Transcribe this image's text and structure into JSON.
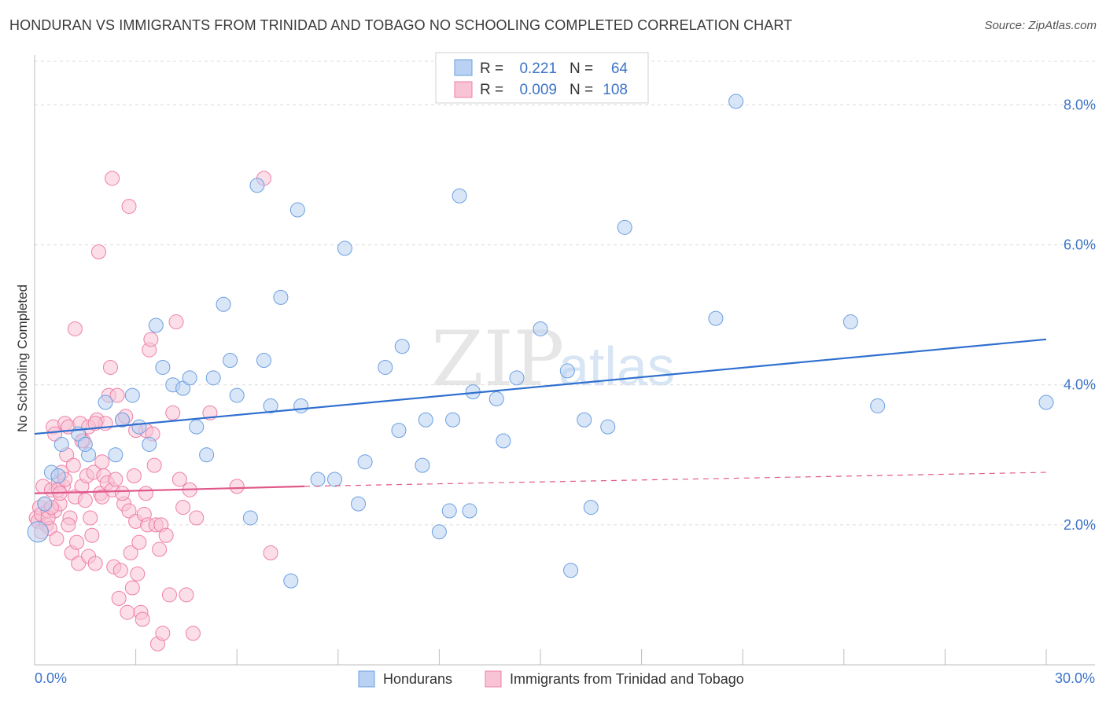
{
  "title": "HONDURAN VS IMMIGRANTS FROM TRINIDAD AND TOBAGO NO SCHOOLING COMPLETED CORRELATION CHART",
  "source": "Source: ZipAtlas.com",
  "watermark": {
    "zip": "ZIP",
    "atlas": "atlas"
  },
  "colors": {
    "blue": "#6b9fe0",
    "blue_fill": "#b9d1f2",
    "blue_line": "#2f6fcf",
    "pink": "#ef7fa6",
    "pink_fill": "#f7c3d5",
    "pink_line": "#e0588a",
    "axis_text": "#3d74c8",
    "grid": "#dcdcdc"
  },
  "legend": {
    "r_label": "R =",
    "n_label": "N =",
    "rows": [
      {
        "r": "0.221",
        "n": "64"
      },
      {
        "r": "0.009",
        "n": "108"
      }
    ]
  },
  "bottom_legend": {
    "series1": "Hondurans",
    "series2": "Immigrants from Trinidad and Tobago"
  },
  "chart_data": {
    "type": "scatter",
    "title": "HONDURAN VS IMMIGRANTS FROM TRINIDAD AND TOBAGO NO SCHOOLING COMPLETED CORRELATION CHART",
    "xlabel": "",
    "ylabel": "No Schooling Completed",
    "xlim": [
      0,
      30
    ],
    "ylim": [
      0,
      8.6
    ],
    "x_tick_labels": [
      "0.0%",
      "30.0%"
    ],
    "y_ticks": [
      2,
      4,
      6,
      8
    ],
    "y_tick_labels": [
      "2.0%",
      "4.0%",
      "6.0%",
      "8.0%"
    ],
    "series": [
      {
        "name": "Hondurans",
        "trend": {
          "x": [
            0,
            30
          ],
          "y": [
            3.3,
            4.65
          ],
          "style": "solid"
        },
        "points": [
          [
            0.1,
            1.9
          ],
          [
            0.3,
            2.3
          ],
          [
            0.5,
            2.75
          ],
          [
            0.7,
            2.7
          ],
          [
            0.8,
            3.15
          ],
          [
            1.3,
            3.3
          ],
          [
            1.6,
            3.0
          ],
          [
            1.5,
            3.15
          ],
          [
            2.1,
            3.75
          ],
          [
            2.4,
            3.0
          ],
          [
            2.6,
            3.5
          ],
          [
            2.9,
            3.85
          ],
          [
            3.1,
            3.4
          ],
          [
            3.4,
            3.15
          ],
          [
            3.6,
            4.85
          ],
          [
            3.8,
            4.25
          ],
          [
            4.1,
            4.0
          ],
          [
            4.4,
            3.95
          ],
          [
            4.6,
            4.1
          ],
          [
            4.8,
            3.4
          ],
          [
            5.1,
            3.0
          ],
          [
            5.3,
            4.1
          ],
          [
            5.6,
            5.15
          ],
          [
            5.8,
            4.35
          ],
          [
            6.0,
            3.85
          ],
          [
            6.4,
            2.1
          ],
          [
            6.6,
            6.85
          ],
          [
            6.8,
            4.35
          ],
          [
            7.0,
            3.7
          ],
          [
            7.3,
            5.25
          ],
          [
            7.6,
            1.2
          ],
          [
            7.8,
            6.5
          ],
          [
            7.9,
            3.7
          ],
          [
            8.4,
            2.65
          ],
          [
            8.9,
            2.65
          ],
          [
            9.2,
            5.95
          ],
          [
            9.6,
            2.3
          ],
          [
            9.8,
            2.9
          ],
          [
            10.4,
            4.25
          ],
          [
            10.8,
            3.35
          ],
          [
            10.9,
            4.55
          ],
          [
            11.5,
            2.85
          ],
          [
            11.6,
            3.5
          ],
          [
            12.0,
            1.9
          ],
          [
            12.3,
            2.2
          ],
          [
            12.4,
            3.5
          ],
          [
            12.6,
            6.7
          ],
          [
            12.9,
            2.2
          ],
          [
            13.0,
            3.9
          ],
          [
            13.7,
            3.8
          ],
          [
            13.9,
            3.2
          ],
          [
            14.3,
            4.1
          ],
          [
            15.0,
            4.8
          ],
          [
            15.8,
            4.2
          ],
          [
            15.9,
            1.35
          ],
          [
            16.3,
            3.5
          ],
          [
            16.5,
            2.25
          ],
          [
            17.0,
            3.4
          ],
          [
            17.5,
            6.25
          ],
          [
            20.2,
            4.95
          ],
          [
            20.8,
            8.05
          ],
          [
            24.2,
            4.9
          ],
          [
            25.0,
            3.7
          ],
          [
            30.0,
            3.75
          ]
        ]
      },
      {
        "name": "Immigrants from Trinidad and Tobago",
        "trend": {
          "x": [
            0,
            8
          ],
          "y": [
            2.45,
            2.55
          ],
          "style": "solid",
          "extend_to": 30,
          "extend_y": 2.75
        },
        "points": [
          [
            0.05,
            2.1
          ],
          [
            0.1,
            2.05
          ],
          [
            0.15,
            2.25
          ],
          [
            0.2,
            2.15
          ],
          [
            0.25,
            2.55
          ],
          [
            0.3,
            2.3
          ],
          [
            0.35,
            2.0
          ],
          [
            0.4,
            2.2
          ],
          [
            0.45,
            1.95
          ],
          [
            0.5,
            2.5
          ],
          [
            0.55,
            3.4
          ],
          [
            0.6,
            2.2
          ],
          [
            0.65,
            1.8
          ],
          [
            0.7,
            2.6
          ],
          [
            0.75,
            2.3
          ],
          [
            0.8,
            2.75
          ],
          [
            0.85,
            2.55
          ],
          [
            0.9,
            3.45
          ],
          [
            0.95,
            3.0
          ],
          [
            1.0,
            3.4
          ],
          [
            1.05,
            2.1
          ],
          [
            1.1,
            1.6
          ],
          [
            1.15,
            2.85
          ],
          [
            1.2,
            2.4
          ],
          [
            1.25,
            1.75
          ],
          [
            1.3,
            1.45
          ],
          [
            1.35,
            3.45
          ],
          [
            1.4,
            2.55
          ],
          [
            1.45,
            3.2
          ],
          [
            1.5,
            2.35
          ],
          [
            1.55,
            2.7
          ],
          [
            1.6,
            1.55
          ],
          [
            1.65,
            2.1
          ],
          [
            1.7,
            1.85
          ],
          [
            1.75,
            2.75
          ],
          [
            1.8,
            1.45
          ],
          [
            1.85,
            3.5
          ],
          [
            1.9,
            5.9
          ],
          [
            1.95,
            2.45
          ],
          [
            2.0,
            2.4
          ],
          [
            2.05,
            2.7
          ],
          [
            2.1,
            3.45
          ],
          [
            2.15,
            2.6
          ],
          [
            2.2,
            3.85
          ],
          [
            2.25,
            4.25
          ],
          [
            2.3,
            2.5
          ],
          [
            2.35,
            1.4
          ],
          [
            2.4,
            2.65
          ],
          [
            2.45,
            3.85
          ],
          [
            2.5,
            0.95
          ],
          [
            2.55,
            1.35
          ],
          [
            2.6,
            3.5
          ],
          [
            2.65,
            2.3
          ],
          [
            2.7,
            3.55
          ],
          [
            2.75,
            0.75
          ],
          [
            2.8,
            2.2
          ],
          [
            2.85,
            1.6
          ],
          [
            2.9,
            1.1
          ],
          [
            2.95,
            2.7
          ],
          [
            3.0,
            2.05
          ],
          [
            3.05,
            1.3
          ],
          [
            3.1,
            1.75
          ],
          [
            3.15,
            0.75
          ],
          [
            3.2,
            0.65
          ],
          [
            3.25,
            2.15
          ],
          [
            3.3,
            3.35
          ],
          [
            3.35,
            2.0
          ],
          [
            3.4,
            4.5
          ],
          [
            3.45,
            4.65
          ],
          [
            3.5,
            3.3
          ],
          [
            3.55,
            2.85
          ],
          [
            3.6,
            2.0
          ],
          [
            3.65,
            0.3
          ],
          [
            3.7,
            1.65
          ],
          [
            3.75,
            2.0
          ],
          [
            3.8,
            0.45
          ],
          [
            3.9,
            1.85
          ],
          [
            4.0,
            1.0
          ],
          [
            4.1,
            3.6
          ],
          [
            4.2,
            4.9
          ],
          [
            4.3,
            2.65
          ],
          [
            4.4,
            2.25
          ],
          [
            4.5,
            1.0
          ],
          [
            4.6,
            2.5
          ],
          [
            4.7,
            0.45
          ],
          [
            4.8,
            2.1
          ],
          [
            2.3,
            6.95
          ],
          [
            2.8,
            6.55
          ],
          [
            0.6,
            3.3
          ],
          [
            0.7,
            2.5
          ],
          [
            0.75,
            2.45
          ],
          [
            0.9,
            2.65
          ],
          [
            1.2,
            4.8
          ],
          [
            1.4,
            3.2
          ],
          [
            1.6,
            3.4
          ],
          [
            1.8,
            3.45
          ],
          [
            2.0,
            2.9
          ],
          [
            2.6,
            2.45
          ],
          [
            3.0,
            3.35
          ],
          [
            3.3,
            2.45
          ],
          [
            5.2,
            3.6
          ],
          [
            6.0,
            2.55
          ],
          [
            6.8,
            6.95
          ],
          [
            7.0,
            1.6
          ],
          [
            0.2,
            1.9
          ],
          [
            0.4,
            2.1
          ],
          [
            0.5,
            2.25
          ],
          [
            1.0,
            2.0
          ]
        ]
      }
    ]
  }
}
